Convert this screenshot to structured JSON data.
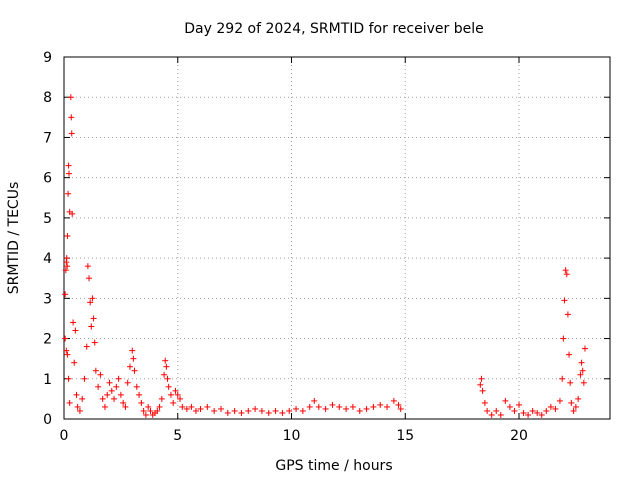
{
  "chart_data": {
    "type": "scatter",
    "title": "Day 292 of 2024, SRMTID for receiver bele",
    "xlabel": "GPS time / hours",
    "ylabel": "SRMTID / TECUs",
    "xlim": [
      0,
      24
    ],
    "ylim": [
      0,
      9
    ],
    "xticks": [
      0,
      5,
      10,
      15,
      20
    ],
    "yticks": [
      0,
      1,
      2,
      3,
      4,
      5,
      6,
      7,
      8,
      9
    ],
    "grid": true,
    "marker": "+",
    "series": [
      {
        "name": "SRMTID",
        "color": "#ff0000",
        "points": [
          [
            0.05,
            3.1
          ],
          [
            0.08,
            3.7
          ],
          [
            0.1,
            3.9
          ],
          [
            0.12,
            4.0
          ],
          [
            0.14,
            3.8
          ],
          [
            0.15,
            4.55
          ],
          [
            0.18,
            5.6
          ],
          [
            0.2,
            6.3
          ],
          [
            0.22,
            6.1
          ],
          [
            0.25,
            5.15
          ],
          [
            0.05,
            2.0
          ],
          [
            0.1,
            1.7
          ],
          [
            0.15,
            1.6
          ],
          [
            0.2,
            1.0
          ],
          [
            0.25,
            0.4
          ],
          [
            0.3,
            8.0
          ],
          [
            0.32,
            7.5
          ],
          [
            0.34,
            7.1
          ],
          [
            0.36,
            5.1
          ],
          [
            0.4,
            2.4
          ],
          [
            0.45,
            1.4
          ],
          [
            0.5,
            2.2
          ],
          [
            0.55,
            0.6
          ],
          [
            0.6,
            0.3
          ],
          [
            0.7,
            0.2
          ],
          [
            0.8,
            0.5
          ],
          [
            0.9,
            1.0
          ],
          [
            1.0,
            1.8
          ],
          [
            1.05,
            3.8
          ],
          [
            1.1,
            3.5
          ],
          [
            1.15,
            2.9
          ],
          [
            1.2,
            2.3
          ],
          [
            1.25,
            3.0
          ],
          [
            1.3,
            2.5
          ],
          [
            1.35,
            1.9
          ],
          [
            1.4,
            1.2
          ],
          [
            1.5,
            0.8
          ],
          [
            1.6,
            1.1
          ],
          [
            1.7,
            0.5
          ],
          [
            1.8,
            0.3
          ],
          [
            1.9,
            0.6
          ],
          [
            2.0,
            0.9
          ],
          [
            2.1,
            0.7
          ],
          [
            2.2,
            0.5
          ],
          [
            2.3,
            0.8
          ],
          [
            2.4,
            1.0
          ],
          [
            2.5,
            0.6
          ],
          [
            2.6,
            0.4
          ],
          [
            2.7,
            0.3
          ],
          [
            2.8,
            0.9
          ],
          [
            2.9,
            1.3
          ],
          [
            3.0,
            1.7
          ],
          [
            3.05,
            1.5
          ],
          [
            3.1,
            1.2
          ],
          [
            3.2,
            0.8
          ],
          [
            3.3,
            0.6
          ],
          [
            3.4,
            0.4
          ],
          [
            3.5,
            0.2
          ],
          [
            3.6,
            0.1
          ],
          [
            3.7,
            0.3
          ],
          [
            3.8,
            0.2
          ],
          [
            3.9,
            0.1
          ],
          [
            4.0,
            0.15
          ],
          [
            4.1,
            0.2
          ],
          [
            4.2,
            0.3
          ],
          [
            4.3,
            0.5
          ],
          [
            4.4,
            1.1
          ],
          [
            4.45,
            1.45
          ],
          [
            4.5,
            1.3
          ],
          [
            4.55,
            1.0
          ],
          [
            4.6,
            0.8
          ],
          [
            4.7,
            0.6
          ],
          [
            4.8,
            0.4
          ],
          [
            4.9,
            0.7
          ],
          [
            5.0,
            0.6
          ],
          [
            5.1,
            0.5
          ],
          [
            5.2,
            0.3
          ],
          [
            5.4,
            0.25
          ],
          [
            5.6,
            0.3
          ],
          [
            5.8,
            0.2
          ],
          [
            6.0,
            0.25
          ],
          [
            6.3,
            0.3
          ],
          [
            6.6,
            0.2
          ],
          [
            6.9,
            0.25
          ],
          [
            7.2,
            0.15
          ],
          [
            7.5,
            0.2
          ],
          [
            7.8,
            0.15
          ],
          [
            8.1,
            0.2
          ],
          [
            8.4,
            0.25
          ],
          [
            8.7,
            0.2
          ],
          [
            9.0,
            0.15
          ],
          [
            9.3,
            0.2
          ],
          [
            9.6,
            0.15
          ],
          [
            9.9,
            0.2
          ],
          [
            10.2,
            0.25
          ],
          [
            10.5,
            0.2
          ],
          [
            10.8,
            0.3
          ],
          [
            11.0,
            0.45
          ],
          [
            11.2,
            0.3
          ],
          [
            11.5,
            0.25
          ],
          [
            11.8,
            0.35
          ],
          [
            12.1,
            0.3
          ],
          [
            12.4,
            0.25
          ],
          [
            12.7,
            0.3
          ],
          [
            13.0,
            0.2
          ],
          [
            13.3,
            0.25
          ],
          [
            13.6,
            0.3
          ],
          [
            13.9,
            0.35
          ],
          [
            14.2,
            0.3
          ],
          [
            14.5,
            0.45
          ],
          [
            14.7,
            0.35
          ],
          [
            14.8,
            0.25
          ],
          [
            18.3,
            0.85
          ],
          [
            18.35,
            1.0
          ],
          [
            18.4,
            0.7
          ],
          [
            18.5,
            0.4
          ],
          [
            18.6,
            0.2
          ],
          [
            18.8,
            0.1
          ],
          [
            19.0,
            0.2
          ],
          [
            19.2,
            0.1
          ],
          [
            19.4,
            0.45
          ],
          [
            19.6,
            0.3
          ],
          [
            19.8,
            0.2
          ],
          [
            20.0,
            0.35
          ],
          [
            20.2,
            0.15
          ],
          [
            20.4,
            0.1
          ],
          [
            20.6,
            0.2
          ],
          [
            20.8,
            0.15
          ],
          [
            21.0,
            0.1
          ],
          [
            21.2,
            0.2
          ],
          [
            21.4,
            0.3
          ],
          [
            21.6,
            0.25
          ],
          [
            21.8,
            0.45
          ],
          [
            21.9,
            1.0
          ],
          [
            21.95,
            2.0
          ],
          [
            22.0,
            2.95
          ],
          [
            22.05,
            3.7
          ],
          [
            22.1,
            3.6
          ],
          [
            22.15,
            2.6
          ],
          [
            22.2,
            1.6
          ],
          [
            22.25,
            0.9
          ],
          [
            22.3,
            0.4
          ],
          [
            22.4,
            0.2
          ],
          [
            22.5,
            0.3
          ],
          [
            22.6,
            0.5
          ],
          [
            22.7,
            1.1
          ],
          [
            22.75,
            1.4
          ],
          [
            22.8,
            1.2
          ],
          [
            22.85,
            0.9
          ],
          [
            22.9,
            1.75
          ]
        ]
      }
    ]
  }
}
